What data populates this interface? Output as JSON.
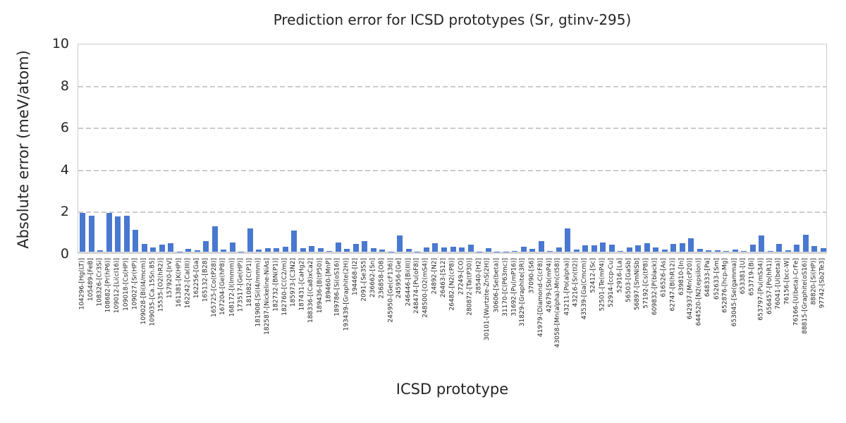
{
  "chart_data": {
    "type": "bar",
    "title": "Prediction error for ICSD prototypes (Sr, gtinv-295)",
    "xlabel": "ICSD prototype",
    "ylabel": "Absolute error (meV/atom)",
    "ylim": [
      0,
      10
    ],
    "yticks": [
      0,
      2,
      4,
      6,
      8,
      10
    ],
    "grid": "horizontal dashed gridlines at y ticks",
    "legend": "none",
    "bar_color": "#4878D0",
    "categories": [
      "104296-[Hg(LT)]",
      "105489-[FeB]",
      "108326-[Cr3Si]",
      "108682-[Pr(hP6)]",
      "109012-[Li(cI16)]",
      "109018-[Cs(HP)]",
      "109027-[Sr(HP)]",
      "109028-[Bi(I4/mcm)]",
      "109035-[Ca.15Sn.85]",
      "15535-[O2(hR2)]",
      "157920-[IrV]",
      "161381-[K(HP)]",
      "162242-[Ca(III)]",
      "162256-[Ga]",
      "165132-[B28]",
      "165725-[Co(tP28)]",
      "167204-[Ge(hP8)]",
      "168172-[I(Immm)]",
      "173517-[Ge(HP)]",
      "181082-[C(P1)]",
      "181908-[Si(I4/mmm)]",
      "182587-[Nickeline-NiAs]",
      "182732-[BN(P1)]",
      "182760-[C(C2/m)]",
      "185973-[C3N2]",
      "187431-[CaHg2]",
      "188336-[(Ca8)xCa2]",
      "189436-[B(tP50)]",
      "189460-[MnP]",
      "189786-[Si(oS16)]",
      "193439-[Graphite(2H)]",
      "194468-[I2]",
      "2091-[Se3S5]",
      "236662-[Sn]",
      "236858-[O8]",
      "245950-[Ge(cF136)]",
      "245956-[Ge]",
      "246446-[Bi(III)]",
      "248474-[Pu(oF8)]",
      "248500-[O2(mS4)]",
      "24892-[N2]",
      "26463-[S12]",
      "26482-[N2(cP8)]",
      "27249-[CO]",
      "280872-[Ta(tP30)]",
      "28540-[H2]",
      "30101-[Wurtzite-ZnS(2H)]",
      "30606-[Se(beta)]",
      "31170-[C(P63mc)]",
      "31692-[Pu(mP16)]",
      "31829-[Graphite(3R)]",
      "37090-[S6]",
      "41979-[Diamond-C(cF8)]",
      "42679-[Sb(mP4)]",
      "43058-[Mn(alpha)-Mn(cI58)]",
      "43211-[Po(alpha)]",
      "43216-[Sn(tI2)]",
      "43539-[Ga(Cmcm)]",
      "52412-[Sc]",
      "52501-[Te(mP4)]",
      "52914-[ccp-Cu]",
      "52916-[La]",
      "56503-[GaSb]",
      "56897-[SmNiSb]",
      "57192-[Cs(tP8)]",
      "609832-[P(black)]",
      "616526-[As]",
      "62747-[B(hR12)]",
      "639810-[In]",
      "642937-[Mn(cP20)]",
      "644520-[N2(epsilon)]",
      "648333-[Pa]",
      "652633-[Sm]",
      "652876-[hcp-Mg]",
      "653045-[Se(gamma)]",
      "653381-[U]",
      "653719-[Bi]",
      "653797-[Pu(mS34)]",
      "656457-[Po(hR1)]",
      "76041-[U(beta)]",
      "76156-[bcc-W]",
      "76166-[U(beta)-CrFe]",
      "88815-[Graphite(oS16)]",
      "88820-[Si(HP)]",
      "97742-[Sb2Te3]"
    ],
    "values": [
      1.86,
      1.7,
      0.06,
      1.84,
      1.69,
      1.72,
      1.05,
      0.36,
      0.19,
      0.32,
      0.4,
      0.01,
      0.13,
      0.06,
      0.52,
      1.22,
      0.11,
      0.45,
      0.01,
      1.1,
      0.1,
      0.16,
      0.18,
      0.24,
      1.0,
      0.18,
      0.27,
      0.18,
      0.02,
      0.44,
      0.13,
      0.36,
      0.5,
      0.16,
      0.11,
      0.01,
      0.78,
      0.12,
      0.01,
      0.2,
      0.4,
      0.2,
      0.22,
      0.19,
      0.33,
      0.01,
      0.18,
      0.01,
      0.01,
      0.02,
      0.22,
      0.13,
      0.51,
      0.02,
      0.19,
      1.11,
      0.11,
      0.31,
      0.29,
      0.44,
      0.33,
      0.02,
      0.2,
      0.29,
      0.41,
      0.19,
      0.11,
      0.36,
      0.39,
      0.64,
      0.13,
      0.07,
      0.07,
      0.02,
      0.11,
      0.02,
      0.32,
      0.76,
      0.02,
      0.37,
      0.07,
      0.33,
      0.8,
      0.27,
      0.18
    ],
    "colors": {
      "bar": "#4878D0",
      "grid": "#cccccc",
      "spine": "#cccccc",
      "text": "#262626",
      "background": "#ffffff"
    }
  }
}
